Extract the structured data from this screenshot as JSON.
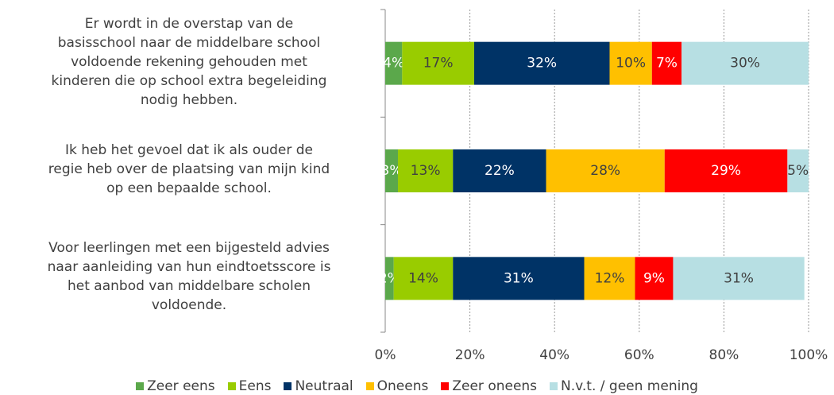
{
  "chart_data": {
    "type": "stacked_barh",
    "categories": [
      "Er wordt in de overstap van de\nbasisschool naar de middelbare school\nvoldoende rekening gehouden met\nkinderen die op school extra begeleiding\nnodig hebben.",
      "Ik heb het gevoel dat ik als ouder de\nregie heb over de plaatsing van mijn kind\nop een bepaalde school.",
      "Voor leerlingen met een bijgesteld advies\nnaar aanleiding van hun eindtoetsscore is\nhet aanbod van middelbare scholen\nvoldoende."
    ],
    "series": [
      {
        "name": "Zeer eens",
        "color": "#5ba84b",
        "values": [
          4,
          3,
          2
        ],
        "value_labels": [
          "4%",
          "3%",
          "2%"
        ]
      },
      {
        "name": "Eens",
        "color": "#99cc00",
        "values": [
          17,
          13,
          14
        ],
        "value_labels": [
          "17%",
          "13%",
          "14%"
        ]
      },
      {
        "name": "Neutraal",
        "color": "#003366",
        "values": [
          32,
          22,
          31
        ],
        "value_labels": [
          "32%",
          "22%",
          "31%"
        ]
      },
      {
        "name": "Oneens",
        "color": "#ffc000",
        "values": [
          10,
          28,
          12
        ],
        "value_labels": [
          "10%",
          "28%",
          "12%"
        ]
      },
      {
        "name": "Zeer oneens",
        "color": "#ff0000",
        "values": [
          7,
          29,
          9
        ],
        "value_labels": [
          "7%",
          "29%",
          "9%"
        ]
      },
      {
        "name": "N.v.t. / geen mening",
        "color": "#b7dfe3",
        "values": [
          30,
          5,
          31
        ],
        "value_labels": [
          "30%",
          "5%",
          "31%"
        ]
      }
    ],
    "xlim": [
      0,
      100
    ],
    "xticks": [
      {
        "value": 0,
        "label": "0%"
      },
      {
        "value": 20,
        "label": "20%"
      },
      {
        "value": 40,
        "label": "40%"
      },
      {
        "value": 60,
        "label": "60%"
      },
      {
        "value": 80,
        "label": "80%"
      },
      {
        "value": 100,
        "label": "100%"
      }
    ],
    "grid": true,
    "legend": "bottom"
  }
}
